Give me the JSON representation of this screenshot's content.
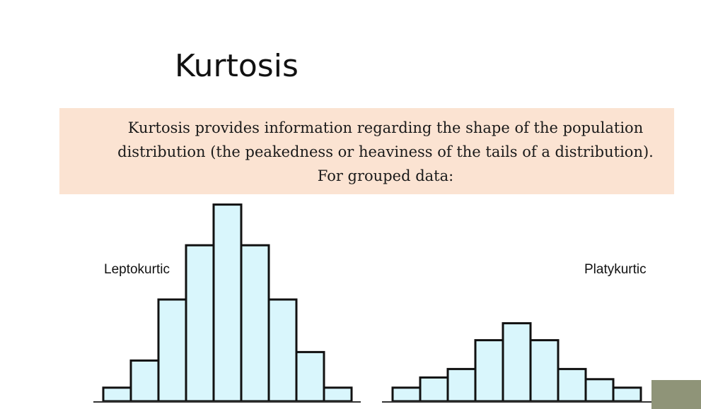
{
  "slide": {
    "title": "Kurtosis",
    "description": "Kurtosis provides information regarding the shape of the population distribution (the peakedness or heaviness of the tails of a distribution). For grouped data:"
  },
  "colors": {
    "callout_bg": "#fbe3d2",
    "bar_fill": "#d9f6fc",
    "bar_stroke": "#111111"
  },
  "chart_data": [
    {
      "type": "bar",
      "label": "Leptokurtic",
      "values": [
        8,
        24,
        60,
        92,
        116,
        92,
        60,
        29,
        8
      ]
    },
    {
      "type": "bar",
      "label": "Platykurtic",
      "values": [
        8,
        14,
        19,
        36,
        46,
        36,
        19,
        13,
        8
      ]
    }
  ]
}
